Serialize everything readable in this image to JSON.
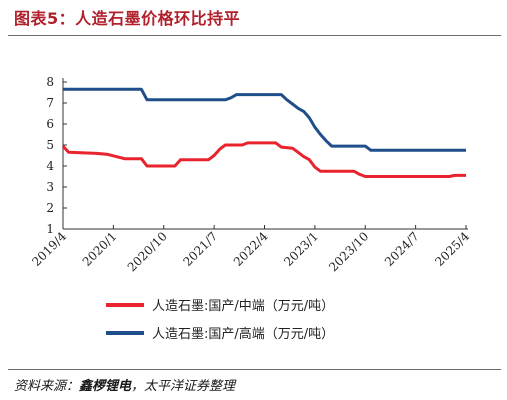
{
  "figure": {
    "title": "图表5：人造石墨价格环比持平",
    "source_prefix": "资料来源：",
    "source_primary": "鑫椤锂电",
    "source_sep": "，",
    "source_secondary": "太平洋证券整理"
  },
  "chart_data": {
    "type": "line",
    "title": "",
    "xlabel": "",
    "ylabel": "",
    "ylim": [
      1,
      8
    ],
    "yticks": [
      1,
      2,
      3,
      4,
      5,
      6,
      7,
      8
    ],
    "xlim": [
      "2019-04",
      "2025-04"
    ],
    "xticks": [
      "2019/4",
      "2020/1",
      "2020/10",
      "2021/7",
      "2022/4",
      "2023/1",
      "2023/10",
      "2024/7",
      "2025/4"
    ],
    "grid": false,
    "legend_position": "bottom",
    "series": [
      {
        "name": "人造石墨:国产/中端（万元/吨）",
        "color": "#e8232d",
        "points": [
          [
            "2019-04",
            4.95
          ],
          [
            "2019-05",
            4.65
          ],
          [
            "2019-10",
            4.6
          ],
          [
            "2019-12",
            4.55
          ],
          [
            "2020-03",
            4.35
          ],
          [
            "2020-06",
            4.35
          ],
          [
            "2020-07",
            4.0
          ],
          [
            "2020-12",
            4.0
          ],
          [
            "2021-01",
            4.3
          ],
          [
            "2021-06",
            4.3
          ],
          [
            "2021-07",
            4.5
          ],
          [
            "2021-08",
            4.8
          ],
          [
            "2021-09",
            5.0
          ],
          [
            "2021-12",
            5.0
          ],
          [
            "2022-01",
            5.1
          ],
          [
            "2022-06",
            5.1
          ],
          [
            "2022-07",
            4.9
          ],
          [
            "2022-09",
            4.85
          ],
          [
            "2022-10",
            4.65
          ],
          [
            "2022-11",
            4.45
          ],
          [
            "2022-12",
            4.3
          ],
          [
            "2023-01",
            3.95
          ],
          [
            "2023-02",
            3.75
          ],
          [
            "2023-08",
            3.75
          ],
          [
            "2023-09",
            3.6
          ],
          [
            "2023-10",
            3.5
          ],
          [
            "2025-01",
            3.5
          ],
          [
            "2025-02",
            3.55
          ],
          [
            "2025-04",
            3.55
          ]
        ]
      },
      {
        "name": "人造石墨:国产/高端（万元/吨）",
        "color": "#1f4e8a",
        "points": [
          [
            "2019-04",
            7.65
          ],
          [
            "2020-06",
            7.65
          ],
          [
            "2020-07",
            7.15
          ],
          [
            "2021-09",
            7.15
          ],
          [
            "2021-10",
            7.25
          ],
          [
            "2021-11",
            7.4
          ],
          [
            "2022-07",
            7.4
          ],
          [
            "2022-08",
            7.15
          ],
          [
            "2022-09",
            6.95
          ],
          [
            "2022-10",
            6.75
          ],
          [
            "2022-11",
            6.6
          ],
          [
            "2022-12",
            6.3
          ],
          [
            "2023-01",
            5.85
          ],
          [
            "2023-02",
            5.5
          ],
          [
            "2023-03",
            5.2
          ],
          [
            "2023-04",
            4.95
          ],
          [
            "2023-10",
            4.95
          ],
          [
            "2023-11",
            4.75
          ],
          [
            "2025-04",
            4.75
          ]
        ]
      }
    ]
  }
}
